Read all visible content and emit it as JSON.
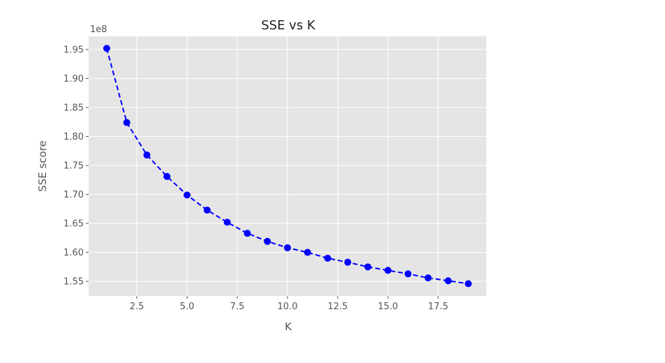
{
  "chart_data": {
    "type": "line",
    "title": "SSE vs K",
    "xlabel": "K",
    "ylabel": "SSE score",
    "y_offset_label": "1e8",
    "xlim": [
      0.1,
      19.9
    ],
    "ylim": [
      1.5248,
      1.9728
    ],
    "x_ticks": [
      2.5,
      5.0,
      7.5,
      10.0,
      12.5,
      15.0,
      17.5
    ],
    "x_tick_labels": [
      "2.5",
      "5.0",
      "7.5",
      "10.0",
      "12.5",
      "15.0",
      "17.5"
    ],
    "y_ticks": [
      1.55,
      1.6,
      1.65,
      1.7,
      1.75,
      1.8,
      1.85,
      1.9,
      1.95
    ],
    "y_tick_labels": [
      "1.55",
      "1.60",
      "1.65",
      "1.70",
      "1.75",
      "1.80",
      "1.85",
      "1.90",
      "1.95"
    ],
    "grid": true,
    "style": "ggplot",
    "line_style": "dashed",
    "marker": "circle",
    "colors": {
      "series": "#0000ff",
      "plot_bg": "#e5e5e5",
      "grid": "#ffffff"
    },
    "series": [
      {
        "x": [
          1,
          2,
          3,
          4,
          5,
          6,
          7,
          8,
          9,
          10,
          11,
          12,
          13,
          14,
          15,
          16,
          17,
          18,
          19
        ],
        "values": [
          1.952,
          1.824,
          1.768,
          1.731,
          1.699,
          1.673,
          1.652,
          1.633,
          1.619,
          1.608,
          1.6,
          1.59,
          1.583,
          1.575,
          1.569,
          1.563,
          1.556,
          1.551,
          1.546
        ]
      }
    ]
  }
}
